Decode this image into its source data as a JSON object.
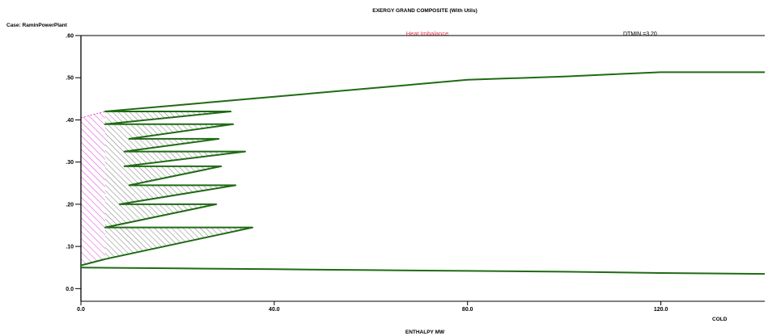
{
  "chart_data": {
    "type": "line",
    "title": "EXERGY GRAND COMPOSITE (With Utils)",
    "case_label": "Case: RaminPowerPlant",
    "heat_imbalance_label": "Heat Imbalance",
    "dtmin_label": "DTMIN =3.20",
    "side_label": "COLD",
    "xlabel": "ENTHALPY MW",
    "xlim": [
      0,
      141.5
    ],
    "ylim": [
      -0.03,
      0.6
    ],
    "x_ticks": [
      {
        "value": 0,
        "label": "0.0"
      },
      {
        "value": 40,
        "label": "40.0"
      },
      {
        "value": 80,
        "label": "80.0"
      },
      {
        "value": 120,
        "label": "120.0"
      }
    ],
    "y_ticks": [
      {
        "value": 0.0,
        "label": "0.0"
      },
      {
        "value": 0.1,
        "label": ".10"
      },
      {
        "value": 0.2,
        "label": ".20"
      },
      {
        "value": 0.3,
        "label": ".30"
      },
      {
        "value": 0.4,
        "label": ".40"
      },
      {
        "value": 0.5,
        "label": ".50"
      },
      {
        "value": 0.6,
        "label": ".60"
      }
    ],
    "series": [
      {
        "x": [
          0,
          5,
          35.5,
          5,
          28,
          8,
          32,
          10,
          29,
          9,
          34,
          9,
          28.5,
          10,
          31.5,
          5,
          31,
          5,
          20,
          40,
          60,
          80,
          100,
          110,
          120,
          141.5
        ],
        "y": [
          0.055,
          0.07,
          0.145,
          0.145,
          0.2,
          0.2,
          0.245,
          0.245,
          0.29,
          0.29,
          0.325,
          0.325,
          0.355,
          0.355,
          0.39,
          0.39,
          0.42,
          0.42,
          0.435,
          0.455,
          0.475,
          0.495,
          0.503,
          0.508,
          0.513,
          0.513
        ],
        "color": "#1f6b14"
      },
      {
        "x": [
          0,
          20,
          40,
          60,
          80,
          100,
          120,
          141.5
        ],
        "y": [
          0.05,
          0.048,
          0.046,
          0.044,
          0.042,
          0.04,
          0.037,
          0.035
        ],
        "color": "#1f6b14"
      }
    ],
    "heat_imbalance_region": {
      "x": [
        0,
        5
      ],
      "y": [
        0.055,
        0.42
      ],
      "color": "#e040e0"
    },
    "hatched_region_color": "#555555"
  }
}
